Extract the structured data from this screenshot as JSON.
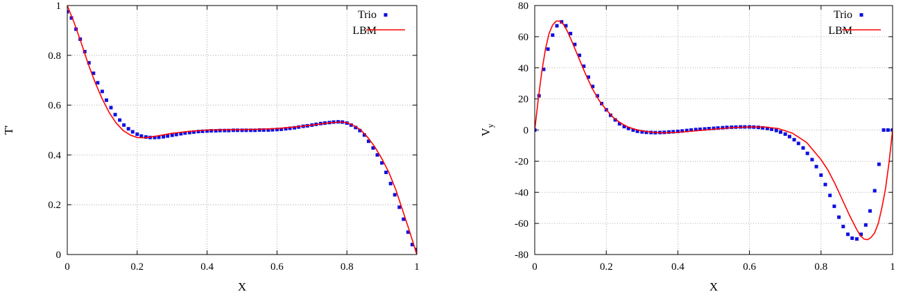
{
  "colors": {
    "trio": "#1010e0",
    "lbm": "#ff0000"
  },
  "chart_data": [
    {
      "type": "line",
      "xlabel": "X",
      "ylabel": "T'",
      "xlim": [
        0,
        1
      ],
      "ylim": [
        0,
        1
      ],
      "xticks": [
        "0",
        "0.2",
        "0.4",
        "0.6",
        "0.8",
        "1"
      ],
      "yticks": [
        "0",
        "0.2",
        "0.4",
        "0.6",
        "0.8",
        "1"
      ],
      "grid": true,
      "legend": "top-right",
      "series": [
        {
          "name": "Trio",
          "style": "points",
          "x": [
            0,
            0.012,
            0.025,
            0.037,
            0.05,
            0.062,
            0.075,
            0.087,
            0.1,
            0.112,
            0.125,
            0.137,
            0.15,
            0.162,
            0.175,
            0.187,
            0.2,
            0.212,
            0.225,
            0.237,
            0.25,
            0.262,
            0.275,
            0.287,
            0.3,
            0.312,
            0.325,
            0.337,
            0.35,
            0.362,
            0.375,
            0.387,
            0.4,
            0.412,
            0.425,
            0.437,
            0.45,
            0.462,
            0.475,
            0.487,
            0.5,
            0.512,
            0.525,
            0.537,
            0.55,
            0.562,
            0.575,
            0.587,
            0.6,
            0.612,
            0.625,
            0.637,
            0.65,
            0.662,
            0.675,
            0.687,
            0.7,
            0.712,
            0.725,
            0.737,
            0.75,
            0.762,
            0.775,
            0.787,
            0.8,
            0.812,
            0.825,
            0.837,
            0.85,
            0.862,
            0.875,
            0.887,
            0.9,
            0.912,
            0.925,
            0.937,
            0.95,
            0.962,
            0.975,
            0.987,
            1
          ],
          "y": [
            0.975,
            0.95,
            0.905,
            0.865,
            0.815,
            0.77,
            0.728,
            0.69,
            0.655,
            0.62,
            0.59,
            0.562,
            0.54,
            0.52,
            0.505,
            0.493,
            0.483,
            0.476,
            0.472,
            0.47,
            0.47,
            0.471,
            0.473,
            0.476,
            0.479,
            0.482,
            0.485,
            0.488,
            0.49,
            0.492,
            0.494,
            0.495,
            0.496,
            0.497,
            0.497,
            0.498,
            0.498,
            0.498,
            0.499,
            0.499,
            0.499,
            0.499,
            0.499,
            0.499,
            0.5,
            0.5,
            0.5,
            0.501,
            0.502,
            0.503,
            0.505,
            0.507,
            0.509,
            0.512,
            0.515,
            0.517,
            0.52,
            0.523,
            0.526,
            0.528,
            0.53,
            0.532,
            0.533,
            0.532,
            0.528,
            0.52,
            0.51,
            0.498,
            0.48,
            0.455,
            0.428,
            0.4,
            0.368,
            0.33,
            0.285,
            0.24,
            0.19,
            0.142,
            0.09,
            0.04,
            0.02
          ]
        },
        {
          "name": "LBM",
          "style": "line",
          "x": [
            0,
            0.02,
            0.04,
            0.06,
            0.08,
            0.1,
            0.12,
            0.14,
            0.16,
            0.18,
            0.2,
            0.22,
            0.24,
            0.26,
            0.28,
            0.3,
            0.35,
            0.4,
            0.45,
            0.5,
            0.55,
            0.6,
            0.65,
            0.7,
            0.75,
            0.78,
            0.8,
            0.82,
            0.84,
            0.86,
            0.88,
            0.9,
            0.92,
            0.94,
            0.96,
            0.98,
            1
          ],
          "y": [
            1,
            0.93,
            0.85,
            0.765,
            0.69,
            0.625,
            0.57,
            0.528,
            0.498,
            0.48,
            0.47,
            0.469,
            0.472,
            0.477,
            0.482,
            0.487,
            0.495,
            0.5,
            0.501,
            0.502,
            0.503,
            0.506,
            0.512,
            0.52,
            0.529,
            0.532,
            0.53,
            0.518,
            0.5,
            0.47,
            0.432,
            0.385,
            0.33,
            0.26,
            0.175,
            0.09,
            0
          ]
        }
      ]
    },
    {
      "type": "line",
      "xlabel": "X",
      "ylabel": "V",
      "ylabel_sub": "y",
      "xlim": [
        0,
        1
      ],
      "ylim": [
        -80,
        80
      ],
      "xticks": [
        "0",
        "0.2",
        "0.4",
        "0.6",
        "0.8",
        "1"
      ],
      "yticks": [
        "-80",
        "-60",
        "-40",
        "-20",
        "0",
        "20",
        "40",
        "60",
        "80"
      ],
      "grid": true,
      "legend": "top-right",
      "series": [
        {
          "name": "Trio",
          "style": "points",
          "x": [
            0,
            0.012,
            0.025,
            0.037,
            0.05,
            0.062,
            0.075,
            0.087,
            0.1,
            0.112,
            0.125,
            0.137,
            0.15,
            0.162,
            0.175,
            0.187,
            0.2,
            0.212,
            0.225,
            0.237,
            0.25,
            0.262,
            0.275,
            0.287,
            0.3,
            0.312,
            0.325,
            0.337,
            0.35,
            0.362,
            0.375,
            0.387,
            0.4,
            0.412,
            0.425,
            0.437,
            0.45,
            0.462,
            0.475,
            0.487,
            0.5,
            0.512,
            0.525,
            0.537,
            0.55,
            0.562,
            0.575,
            0.587,
            0.6,
            0.612,
            0.625,
            0.637,
            0.65,
            0.662,
            0.675,
            0.687,
            0.7,
            0.712,
            0.725,
            0.737,
            0.75,
            0.762,
            0.775,
            0.787,
            0.8,
            0.812,
            0.825,
            0.837,
            0.85,
            0.862,
            0.875,
            0.887,
            0.9,
            0.912,
            0.925,
            0.937,
            0.95,
            0.962,
            0.975,
            0.987,
            1
          ],
          "y": [
            0,
            22,
            39,
            52,
            61,
            67,
            69.5,
            67,
            62,
            55,
            48,
            41,
            34,
            28,
            22,
            17,
            13,
            9.5,
            6.5,
            4,
            2.2,
            1,
            0,
            -0.8,
            -1.2,
            -1.5,
            -1.6,
            -1.7,
            -1.6,
            -1.5,
            -1.3,
            -1.1,
            -0.9,
            -0.6,
            -0.3,
            0,
            0.3,
            0.5,
            0.7,
            0.9,
            1.1,
            1.3,
            1.5,
            1.7,
            1.8,
            1.9,
            2,
            2,
            2,
            1.9,
            1.7,
            1.4,
            1,
            0.5,
            -0.3,
            -1.3,
            -2.6,
            -4.2,
            -6.2,
            -8.6,
            -11.5,
            -15,
            -19,
            -23.5,
            -29,
            -35,
            -42,
            -49,
            -56,
            -62,
            -67,
            -69.5,
            -70,
            -67,
            -61,
            -52,
            -39,
            -22,
            0,
            0,
            0
          ]
        },
        {
          "name": "LBM",
          "style": "line",
          "x": [
            0,
            0.01,
            0.02,
            0.03,
            0.04,
            0.05,
            0.06,
            0.07,
            0.08,
            0.09,
            0.1,
            0.12,
            0.14,
            0.16,
            0.18,
            0.2,
            0.22,
            0.24,
            0.26,
            0.28,
            0.3,
            0.33,
            0.36,
            0.4,
            0.45,
            0.5,
            0.55,
            0.6,
            0.64,
            0.68,
            0.72,
            0.76,
            0.8,
            0.82,
            0.84,
            0.86,
            0.88,
            0.9,
            0.91,
            0.92,
            0.93,
            0.94,
            0.95,
            0.96,
            0.97,
            0.98,
            0.99,
            1
          ],
          "y": [
            0,
            20,
            38,
            52,
            62,
            67.5,
            70,
            70,
            68,
            64,
            59,
            48,
            37,
            27,
            19,
            13,
            8,
            4.5,
            2,
            0.5,
            -0.5,
            -1.5,
            -1.8,
            -1.5,
            -0.5,
            0.5,
            1.5,
            2,
            2,
            1,
            -2,
            -8,
            -19,
            -26,
            -35,
            -45,
            -55,
            -64,
            -68,
            -70,
            -70.5,
            -69,
            -66,
            -60,
            -50,
            -38,
            -21,
            0
          ]
        }
      ]
    }
  ]
}
